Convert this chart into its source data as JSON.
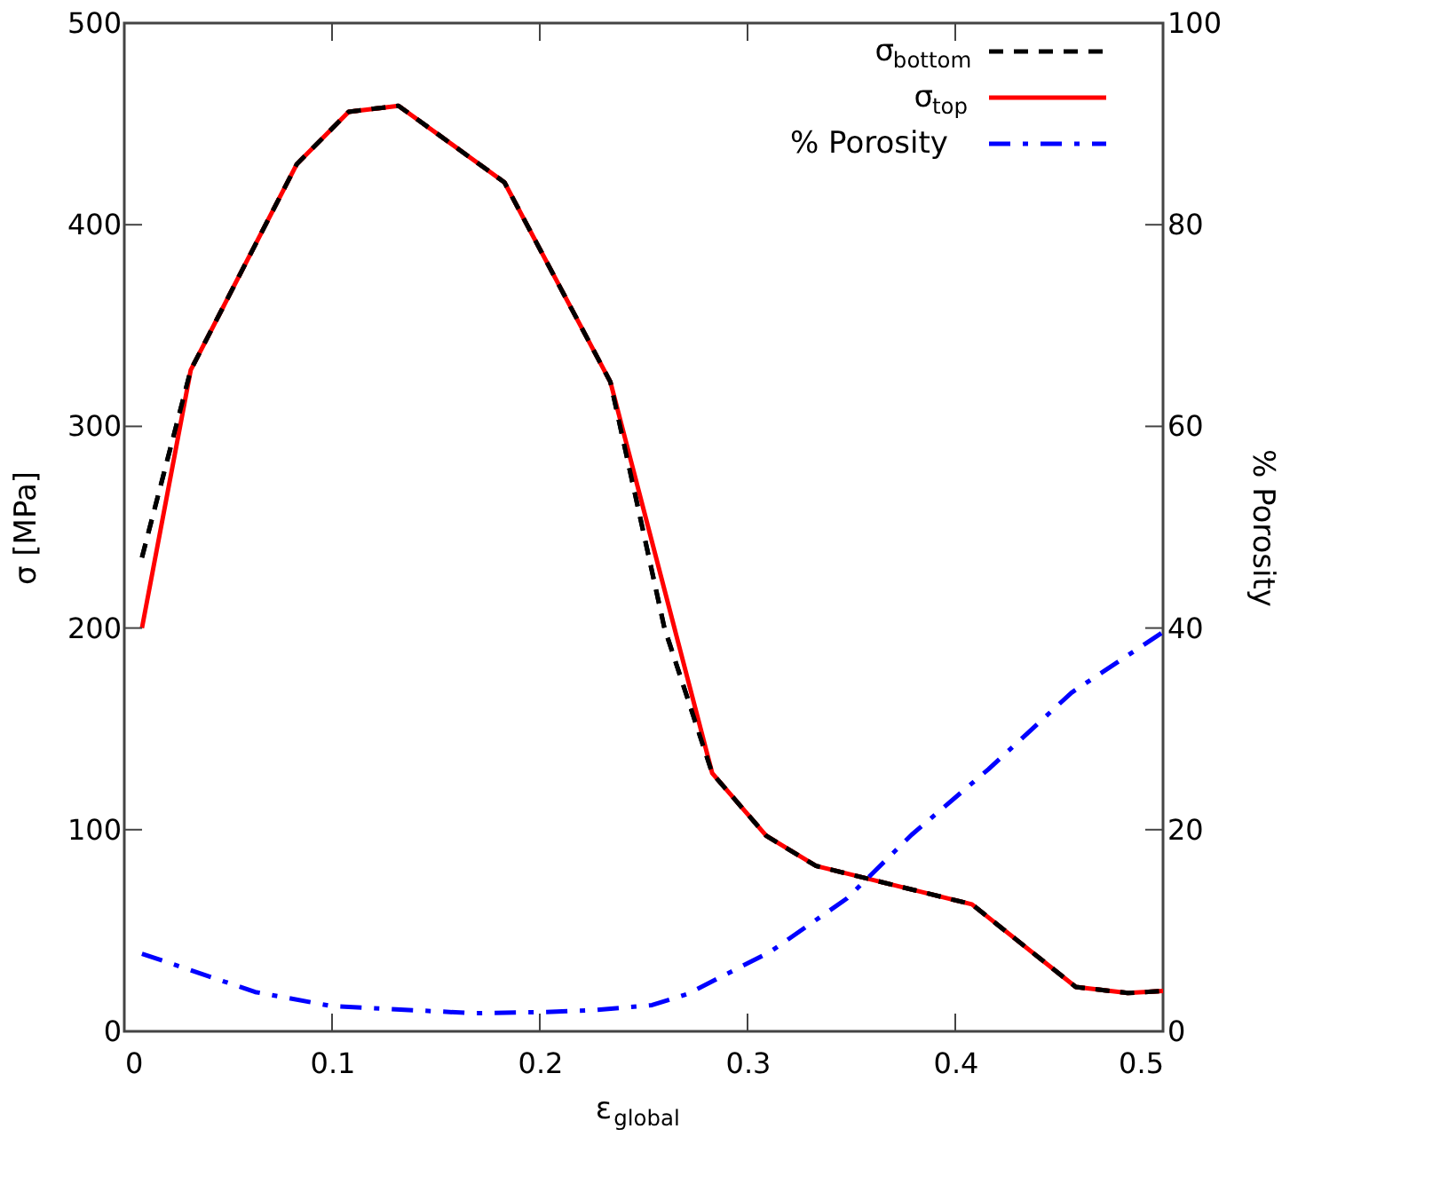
{
  "chart_data": {
    "type": "line",
    "xlabel": "ε$_{global}$",
    "ylabel": "σ [MPa]",
    "y2label": "% Porosity",
    "xlim": [
      0,
      0.5
    ],
    "xticks": [
      0,
      0.1,
      0.2,
      0.3,
      0.4,
      0.5
    ],
    "ylim": [
      0,
      500
    ],
    "yticks": [
      0,
      100,
      200,
      300,
      400,
      500
    ],
    "y2lim": [
      0,
      100
    ],
    "y2ticks": [
      0,
      20,
      40,
      60,
      80,
      100
    ],
    "grid": false,
    "legend": "top right",
    "marker": "none",
    "series": [
      {
        "name": "σ$_{bottom}$",
        "color": "#000000",
        "line_style": "dashed",
        "x": [
          0.0085,
          0.032,
          0.083,
          0.108,
          0.132,
          0.183,
          0.234,
          0.26,
          0.283,
          0.309,
          0.333,
          0.408,
          0.458,
          0.483,
          0.5
        ],
        "values": [
          235,
          328,
          430,
          456,
          459,
          421,
          322,
          200,
          128,
          97,
          82,
          63,
          22,
          19,
          20
        ]
      },
      {
        "name": "σ$_{top}$",
        "color": "#ff0000",
        "line_style": "solid",
        "x": [
          0.0085,
          0.032,
          0.083,
          0.108,
          0.132,
          0.183,
          0.234,
          0.283,
          0.309,
          0.333,
          0.408,
          0.458,
          0.483,
          0.5
        ],
        "values": [
          200,
          328,
          430,
          456,
          459,
          421,
          322,
          128,
          97,
          82,
          63,
          22,
          19,
          20
        ]
      },
      {
        "name": "% Porosity",
        "color": "#0000ff",
        "line_style": "dashdot",
        "axis": "y2",
        "x": [
          0.0085,
          0.063,
          0.1,
          0.168,
          0.2,
          0.226,
          0.254,
          0.271,
          0.311,
          0.348,
          0.379,
          0.416,
          0.456,
          0.5
        ],
        "values": [
          7.7,
          3.9,
          2.5,
          1.8,
          1.9,
          2.1,
          2.6,
          3.7,
          7.9,
          13.2,
          19.5,
          26,
          33.6,
          39.6
        ]
      }
    ]
  }
}
